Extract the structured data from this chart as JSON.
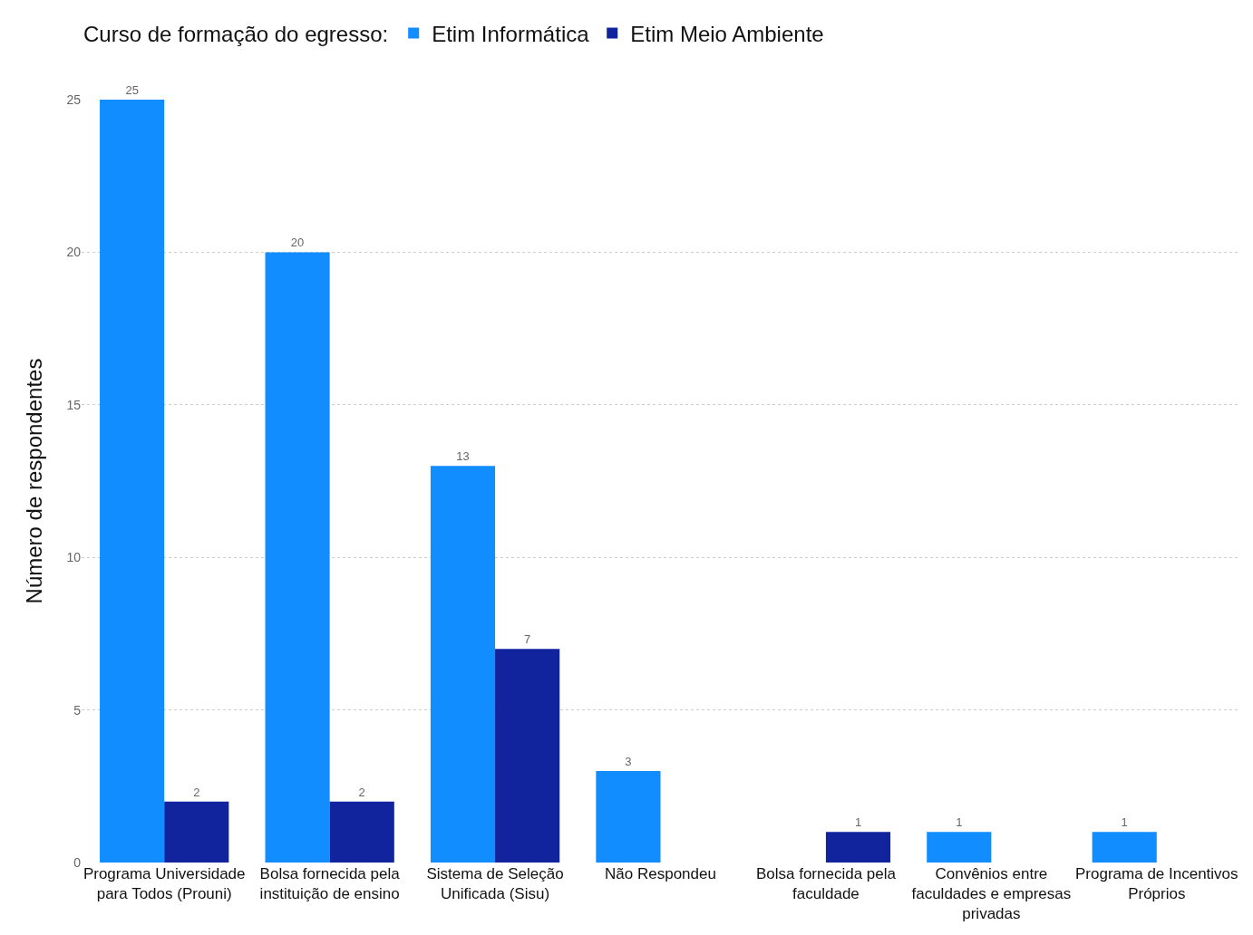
{
  "chart_data": {
    "type": "bar",
    "ylabel": "Número de respondentes",
    "legend_title": "Curso de formação do egresso:",
    "categories": [
      "Programa Universidade para Todos (Prouni)",
      "Bolsa fornecida pela instituição de ensino",
      "Sistema de Seleção Unificada (Sisu)",
      "Não Respondeu",
      "Bolsa fornecida pela faculdade",
      "Convênios entre faculdades e empresas privadas",
      "Programa de Incentivos Próprios"
    ],
    "series": [
      {
        "name": "Etim Informática",
        "color": "#118dff",
        "values": [
          25,
          20,
          13,
          3,
          null,
          1,
          1
        ]
      },
      {
        "name": "Etim Meio Ambiente",
        "color": "#12239e",
        "values": [
          2,
          2,
          7,
          null,
          1,
          null,
          null
        ]
      }
    ],
    "ylim": [
      0,
      25
    ],
    "yticks": [
      0,
      5,
      10,
      15,
      20,
      25
    ],
    "grid": "y",
    "legend": "top left",
    "data_labels": true
  }
}
